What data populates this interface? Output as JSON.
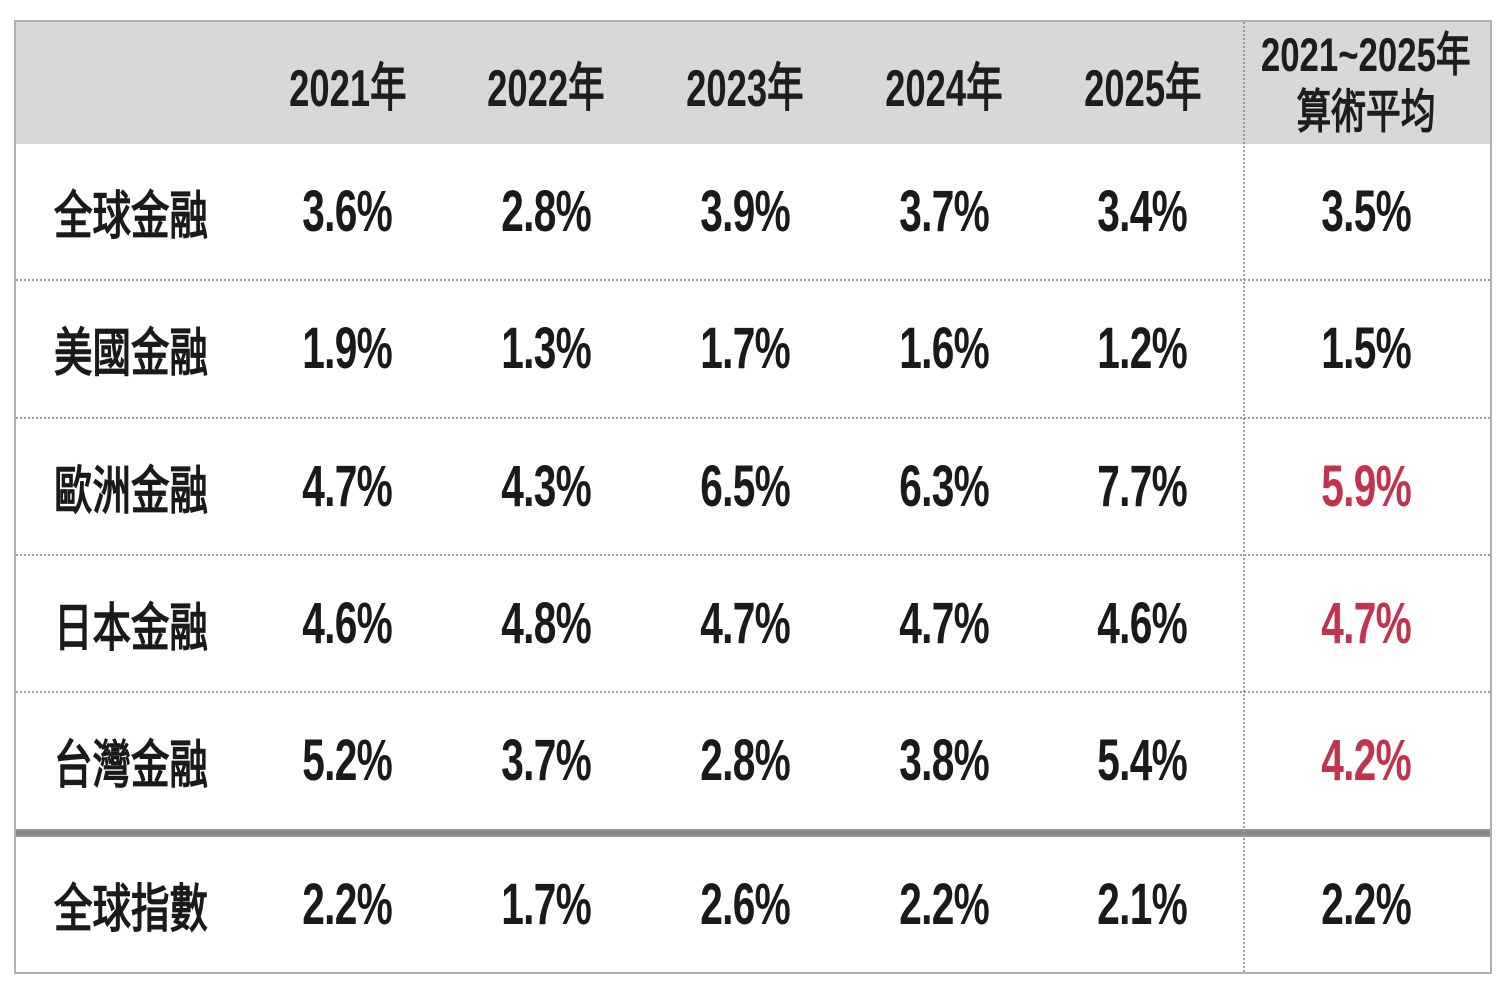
{
  "chart_data": {
    "type": "table",
    "description": "Annualized returns table comparing financial sector indices by year, in Traditional Chinese",
    "header": {
      "years": [
        "2021年",
        "2022年",
        "2023年",
        "2024年",
        "2025年"
      ],
      "avg_line1": "2021~2025年",
      "avg_line2": "算術平均"
    },
    "rows": [
      {
        "label": "全球金融",
        "values": [
          "3.6%",
          "2.8%",
          "3.9%",
          "3.7%",
          "3.4%"
        ],
        "avg": "3.5%",
        "avg_style": "color:#1a1a1a"
      },
      {
        "label": "美國金融",
        "values": [
          "1.9%",
          "1.3%",
          "1.7%",
          "1.6%",
          "1.2%"
        ],
        "avg": "1.5%",
        "avg_style": "color:#1a1a1a"
      },
      {
        "label": "歐洲金融",
        "values": [
          "4.7%",
          "4.3%",
          "6.5%",
          "6.3%",
          "7.7%"
        ],
        "avg": "5.9%",
        "avg_style": "color:#c2334d"
      },
      {
        "label": "日本金融",
        "values": [
          "4.6%",
          "4.8%",
          "4.7%",
          "4.7%",
          "4.6%"
        ],
        "avg": "4.7%",
        "avg_style": "color:#c2334d"
      },
      {
        "label": "台灣金融",
        "values": [
          "5.2%",
          "3.7%",
          "2.8%",
          "3.8%",
          "5.4%"
        ],
        "avg": "4.2%",
        "avg_style": "color:#c2334d"
      },
      {
        "label": "全球指數",
        "values": [
          "2.2%",
          "1.7%",
          "2.6%",
          "2.2%",
          "2.1%"
        ],
        "avg": "2.2%",
        "avg_style": "color:#1a1a1a"
      }
    ],
    "layout_hints": {
      "highlight_red_averages": [
        "歐洲金融",
        "日本金融",
        "台灣金融"
      ],
      "last_row_separated_by_thick_line": "全球指數",
      "average_column_separated_by_dotted_line": true
    },
    "colors": {
      "header_bg": "#d8d8d8",
      "text": "#1a1a1a",
      "red_highlight": "#c2334d",
      "dotted_separator": "#9c9c9c",
      "thick_separator": "#888888",
      "outer_border": "#b1b1b1"
    }
  }
}
